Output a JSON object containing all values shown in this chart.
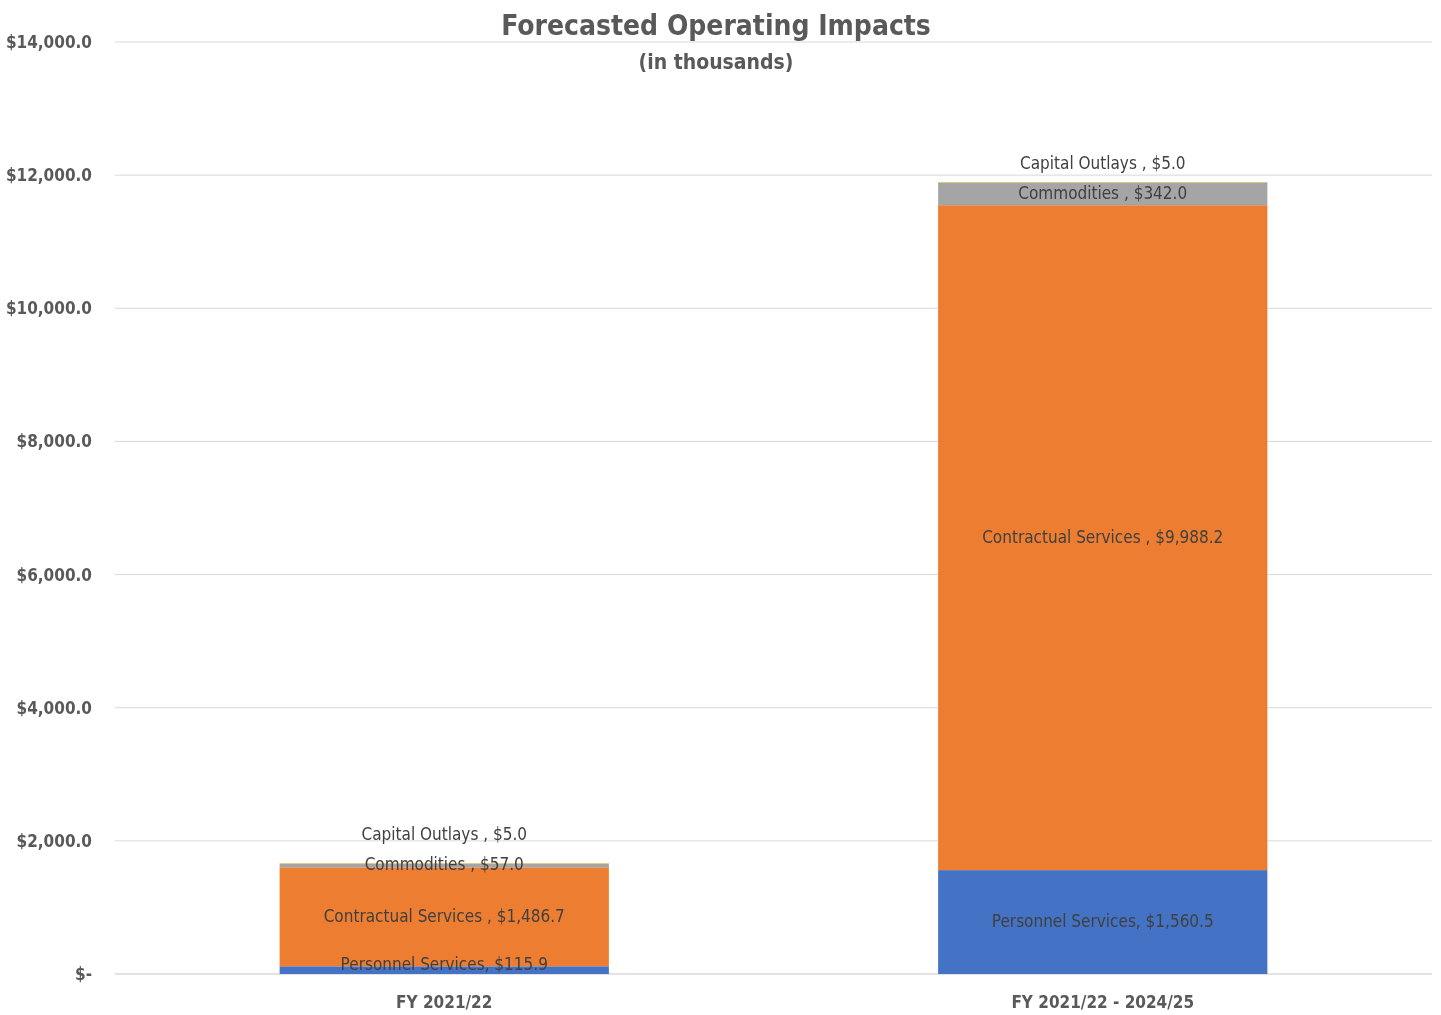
{
  "chart_data": {
    "type": "bar",
    "title": "Forecasted Operating Impacts",
    "subtitle": "(in thousands)",
    "categories": [
      "FY 2021/22",
      "FY 2021/22 - 2024/25"
    ],
    "stacked": true,
    "grid": "y",
    "ylim": [
      0,
      14000
    ],
    "yticks": [
      {
        "value": 0,
        "label": "$-"
      },
      {
        "value": 2000,
        "label": "$2,000.0"
      },
      {
        "value": 4000,
        "label": "$4,000.0"
      },
      {
        "value": 6000,
        "label": "$6,000.0"
      },
      {
        "value": 8000,
        "label": "$8,000.0"
      },
      {
        "value": 10000,
        "label": "$10,000.0"
      },
      {
        "value": 12000,
        "label": "$12,000.0"
      },
      {
        "value": 14000,
        "label": "$14,000.0"
      }
    ],
    "series": [
      {
        "color": "#4472c4",
        "values": [
          115.9,
          1560.5
        ],
        "value_labels": [
          "Personnel Services, $115.9",
          "Personnel Services, $1,560.5"
        ]
      },
      {
        "color": "#ed7d31",
        "values": [
          1486.7,
          9988.2
        ],
        "value_labels": [
          "Contractual Services , $1,486.7",
          "Contractual Services , $9,988.2"
        ]
      },
      {
        "color": "#a5a5a5",
        "values": [
          57.0,
          342.0
        ],
        "value_labels": [
          "Commodities , $57.0",
          "Commodities , $342.0"
        ]
      },
      {
        "color": "#ffc000",
        "values": [
          5.0,
          5.0
        ],
        "value_labels": [
          "Capital Outlays , $5.0",
          "Capital Outlays , $5.0"
        ]
      }
    ]
  }
}
